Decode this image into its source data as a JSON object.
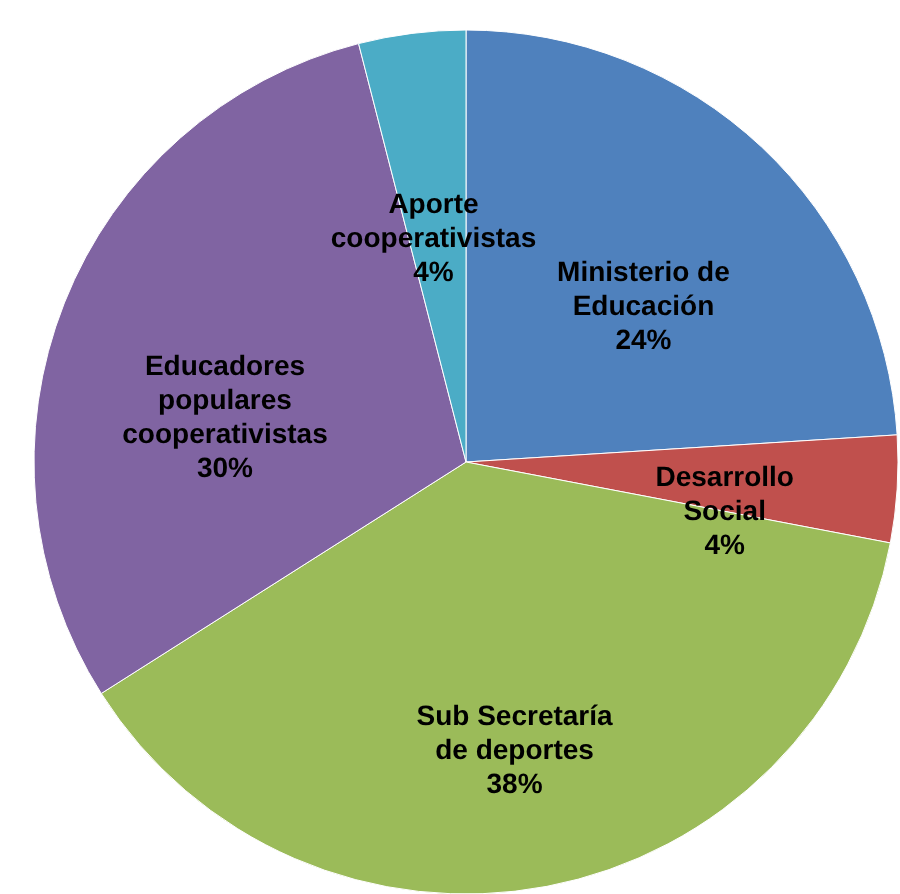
{
  "chart_data": {
    "type": "pie",
    "categories": [
      "Ministerio de\nEducación",
      "Desarrollo\nSocial",
      "Sub Secretaría\nde deportes",
      "Educadores\npopulares\ncooperativistas",
      "Aporte\ncooperativistas"
    ],
    "values": [
      24,
      4,
      38,
      30,
      4
    ],
    "colors": [
      "#4f81bd",
      "#c0504d",
      "#9bbb59",
      "#8064a2",
      "#4bacc6"
    ],
    "value_labels": [
      "24%",
      "4%",
      "38%",
      "30%",
      "4%"
    ],
    "legend": false
  }
}
